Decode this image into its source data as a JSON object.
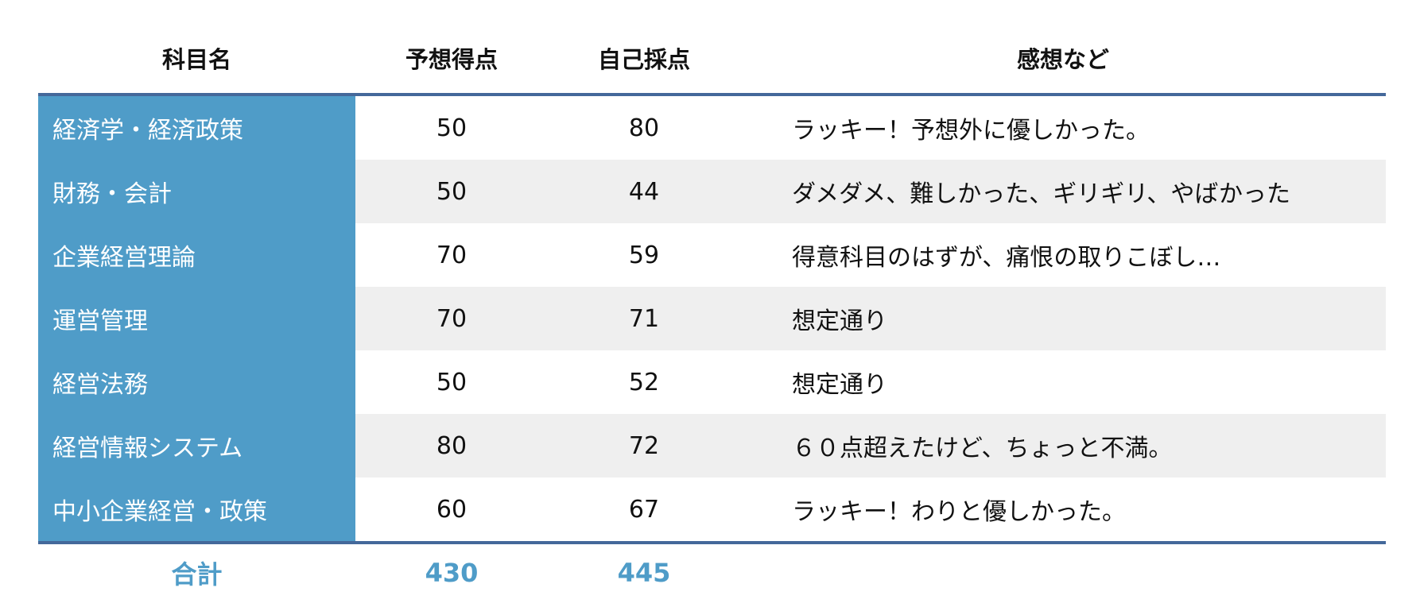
{
  "headers": {
    "subject": "科目名",
    "expected": "予想得点",
    "self": "自己採点",
    "comment": "感想など"
  },
  "rows": [
    {
      "subject": "経済学・経済政策",
      "expected": "50",
      "self": "80",
      "comment": "ラッキー！予想外に優しかった。"
    },
    {
      "subject": "財務・会計",
      "expected": "50",
      "self": "44",
      "comment": "ダメダメ、難しかった、ギリギリ、やばかった"
    },
    {
      "subject": "企業経営理論",
      "expected": "70",
      "self": "59",
      "comment": "得意科目のはずが、痛恨の取りこぼし…"
    },
    {
      "subject": "運営管理",
      "expected": "70",
      "self": "71",
      "comment": "想定通り"
    },
    {
      "subject": "経営法務",
      "expected": "50",
      "self": "52",
      "comment": "想定通り"
    },
    {
      "subject": "経営情報システム",
      "expected": "80",
      "self": "72",
      "comment": "６０点超えたけど、ちょっと不満。"
    },
    {
      "subject": "中小企業経営・政策",
      "expected": "60",
      "self": "67",
      "comment": "ラッキー！わりと優しかった。"
    }
  ],
  "total": {
    "label": "合計",
    "expected": "430",
    "self": "445"
  },
  "colors": {
    "subject_bg": "#4f9cc8",
    "rule": "#44689a",
    "stripe": "#efefef"
  }
}
